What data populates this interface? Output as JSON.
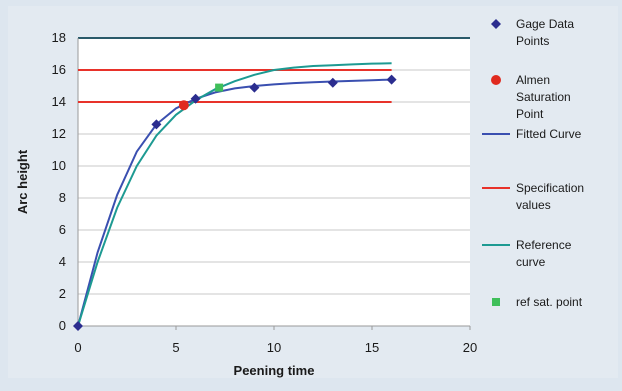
{
  "chart_data": {
    "type": "line",
    "xlabel": "Peening time",
    "ylabel": "Arc height",
    "xlim": [
      0,
      20
    ],
    "ylim": [
      0,
      18
    ],
    "xticks": [
      "0",
      "5",
      "10",
      "15",
      "20"
    ],
    "yticks": [
      "0",
      "2",
      "4",
      "6",
      "8",
      "10",
      "12",
      "14",
      "16",
      "18"
    ],
    "grid": "horizontal",
    "legend_position": "right",
    "colors": {
      "gage": "#2b2d8f",
      "almen": "#e02a1f",
      "fitted": "#3a4fb0",
      "spec": "#e8322a",
      "reference": "#1d9a92",
      "ref_sat": "#3fbf5a",
      "plot_bg": "#ffffff",
      "grid": "#c8c8c8",
      "top_border": "#2a5a6a"
    },
    "legend": [
      {
        "key": "gage",
        "lines": [
          "Gage Data",
          "Points"
        ],
        "symbol": "diamond"
      },
      {
        "key": "almen",
        "lines": [
          "Almen",
          "Saturation",
          "Point"
        ],
        "symbol": "dot"
      },
      {
        "key": "fitted",
        "lines": [
          "Fitted Curve"
        ],
        "symbol": "line"
      },
      {
        "key": "spec",
        "lines": [
          "Specification",
          "values"
        ],
        "symbol": "line"
      },
      {
        "key": "reference",
        "lines": [
          "Reference",
          "curve"
        ],
        "symbol": "line"
      },
      {
        "key": "ref_sat",
        "lines": [
          "ref sat. point"
        ],
        "symbol": "square"
      }
    ],
    "series": [
      {
        "key": "gage",
        "type": "points",
        "x": [
          0,
          4,
          6,
          9,
          13,
          16
        ],
        "y": [
          0,
          12.6,
          14.2,
          14.9,
          15.2,
          15.4
        ]
      },
      {
        "key": "almen",
        "type": "points",
        "x": [
          5.4
        ],
        "y": [
          13.8
        ]
      },
      {
        "key": "ref_sat",
        "type": "points",
        "x": [
          7.2
        ],
        "y": [
          14.9
        ]
      },
      {
        "key": "fitted",
        "type": "line",
        "x": [
          0,
          1,
          2,
          3,
          4,
          5,
          6,
          7,
          8,
          9,
          10,
          11,
          12,
          13,
          14,
          15,
          16
        ],
        "y": [
          0,
          4.6,
          8.2,
          10.9,
          12.6,
          13.6,
          14.2,
          14.6,
          14.85,
          15.0,
          15.1,
          15.18,
          15.24,
          15.28,
          15.32,
          15.36,
          15.4
        ]
      },
      {
        "key": "reference",
        "type": "line",
        "x": [
          0,
          1,
          2,
          3,
          4,
          5,
          6,
          7,
          8,
          9,
          10,
          11,
          12,
          13,
          14,
          15,
          16
        ],
        "y": [
          0,
          4.0,
          7.4,
          10.0,
          11.9,
          13.2,
          14.1,
          14.8,
          15.3,
          15.7,
          16.0,
          16.15,
          16.25,
          16.3,
          16.35,
          16.4,
          16.42
        ]
      },
      {
        "key": "spec",
        "type": "hline",
        "y": 16,
        "x": [
          0,
          16
        ]
      },
      {
        "key": "spec",
        "type": "hline",
        "y": 14,
        "x": [
          0,
          16
        ]
      }
    ]
  }
}
